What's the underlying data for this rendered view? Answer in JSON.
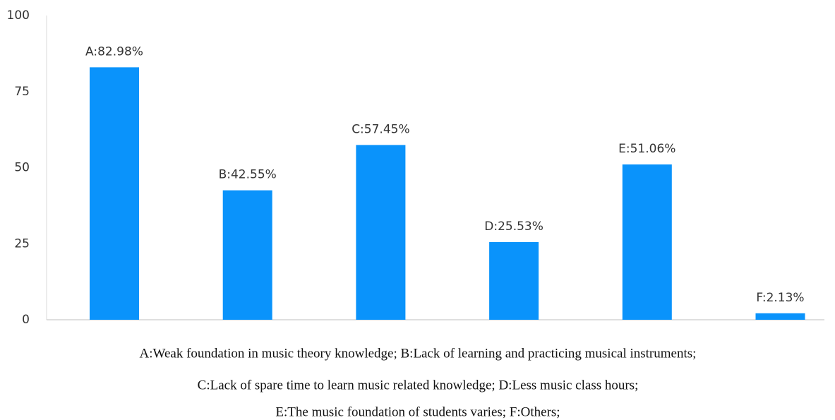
{
  "chart_data": {
    "type": "bar",
    "values": [
      82.98,
      42.55,
      57.45,
      25.53,
      51.06,
      2.13
    ],
    "value_labels": [
      "A:82.98%",
      "B:42.55%",
      "C:57.45%",
      "D:25.53%",
      "E:51.06%",
      "F:2.13%"
    ],
    "color": "#0a93fb",
    "ylim": [
      0,
      100
    ],
    "yticks": [
      0,
      25,
      50,
      75,
      100
    ],
    "grid": false,
    "caption": [
      "A:Weak foundation in music theory knowledge; B:Lack of learning and practicing musical instruments;",
      "C:Lack of spare time to learn music related knowledge; D:Less music class hours;",
      "E:The music foundation of students varies; F:Others;"
    ]
  }
}
